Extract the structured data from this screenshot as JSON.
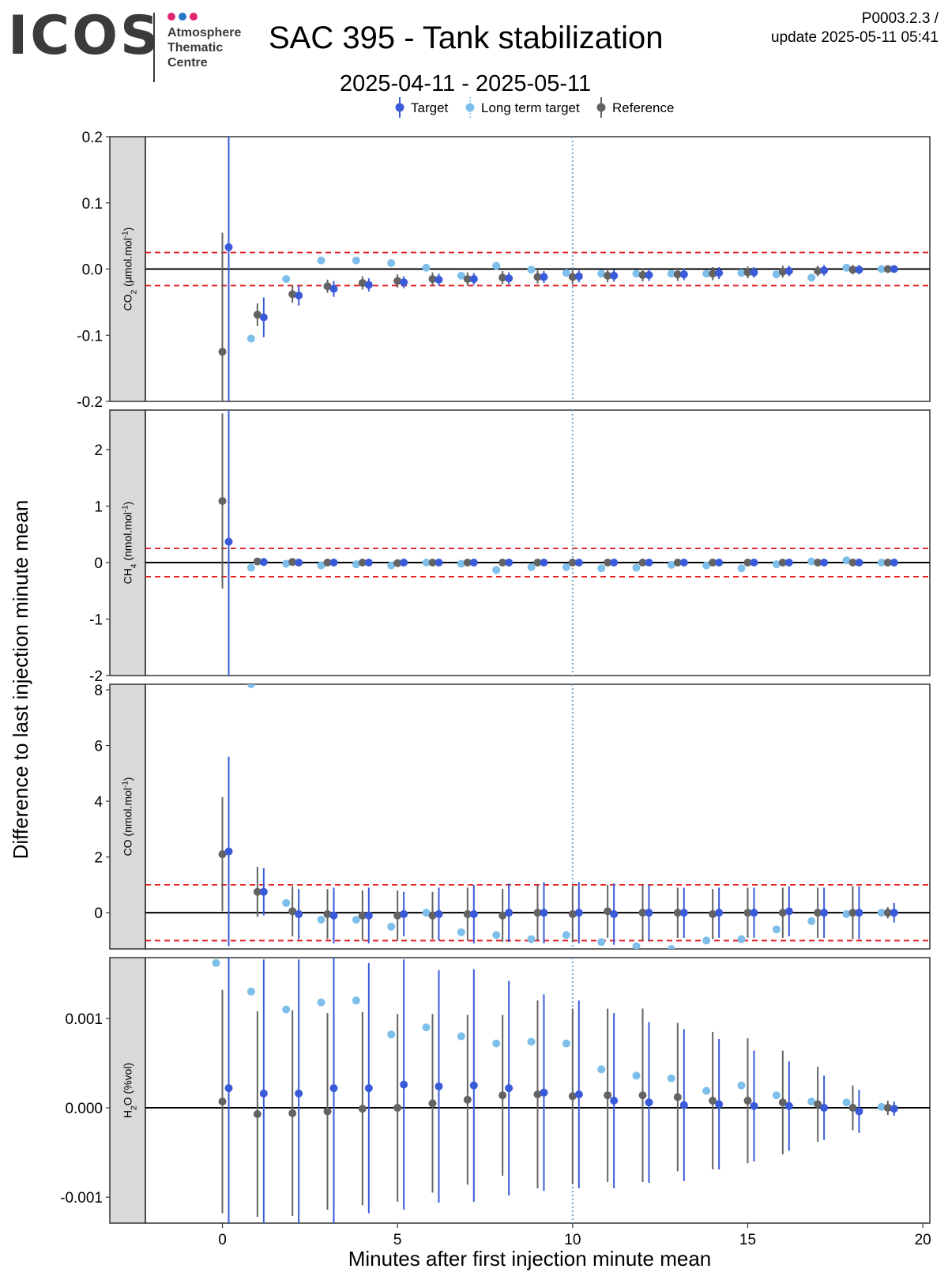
{
  "header": {
    "logo_text": "ICOS",
    "logo_subtitle_lines": [
      "Atmosphere",
      "Thematic",
      "Centre"
    ],
    "logo_dot_colors": [
      "#e0266f",
      "#2878c8",
      "#e0266f"
    ],
    "title": "SAC 395 - Tank stabilization",
    "date_range": "2025-04-11 - 2025-05-11",
    "code": "P0003.2.3 /",
    "update": "update  2025-05-11 05:41"
  },
  "chart_data": {
    "type": "scatter",
    "xlabel": "Minutes after first injection minute mean",
    "ylabel": "Difference to last injection minute mean",
    "xlim": [
      -2.2,
      20.2
    ],
    "xticks": [
      0,
      5,
      10,
      15,
      20
    ],
    "x_tick_labels": [
      "0",
      "5",
      "10",
      "15",
      "20"
    ],
    "vline_x": 10,
    "legend": {
      "position": "top",
      "entries": [
        {
          "name": "Target",
          "color": "#3a5bd9"
        },
        {
          "name": "Long term target",
          "color": "#7dbfea"
        },
        {
          "name": "Reference",
          "color": "#636363"
        }
      ]
    },
    "colors": {
      "target": "#3a5bd9",
      "long_term": "#7dbfea",
      "reference": "#636363",
      "threshold": "#e31a1c",
      "vline": "#6fa8dc",
      "strip": "#d9d9d9"
    },
    "x": [
      0,
      1,
      2,
      3,
      4,
      5,
      6,
      7,
      8,
      9,
      10,
      11,
      12,
      13,
      14,
      15,
      16,
      17,
      18,
      19
    ],
    "panels": [
      {
        "strip_main": "CO",
        "strip_sub": "2",
        "strip_rest": " (μmol.mol",
        "strip_sup": "-1",
        "strip_end": ")",
        "ylim": [
          -0.2,
          0.2
        ],
        "yticks": [
          -0.2,
          -0.1,
          0.0,
          0.1,
          0.2
        ],
        "y_tick_labels": [
          "-0.2",
          "-0.1",
          "0.0",
          "0.1",
          "0.2"
        ],
        "threshold": 0.025,
        "target": [
          0.033,
          -0.073,
          -0.04,
          -0.03,
          -0.024,
          -0.02,
          -0.016,
          -0.015,
          -0.014,
          -0.012,
          -0.011,
          -0.01,
          -0.009,
          -0.008,
          -0.006,
          -0.005,
          -0.003,
          -0.002,
          -0.001,
          0.0
        ],
        "target_err": [
          0.5,
          0.03,
          0.015,
          0.012,
          0.01,
          0.009,
          0.009,
          0.009,
          0.009,
          0.009,
          0.009,
          0.009,
          0.009,
          0.009,
          0.009,
          0.008,
          0.008,
          0.008,
          0.007,
          0.005
        ],
        "long_term": [
          null,
          -0.105,
          -0.015,
          0.013,
          0.013,
          0.009,
          0.002,
          -0.01,
          0.005,
          -0.001,
          -0.006,
          -0.007,
          -0.007,
          -0.007,
          -0.007,
          -0.006,
          -0.008,
          -0.013,
          0.002,
          0.0
        ],
        "reference": [
          -0.125,
          -0.069,
          -0.038,
          -0.026,
          -0.021,
          -0.018,
          -0.015,
          -0.015,
          -0.013,
          -0.012,
          -0.012,
          -0.01,
          -0.009,
          -0.008,
          -0.007,
          -0.005,
          -0.004,
          -0.003,
          -0.001,
          0.0
        ],
        "reference_err": [
          0.18,
          0.017,
          0.013,
          0.01,
          0.01,
          0.01,
          0.01,
          0.01,
          0.01,
          0.01,
          0.01,
          0.01,
          0.01,
          0.01,
          0.01,
          0.009,
          0.009,
          0.008,
          0.007,
          0.004
        ]
      },
      {
        "strip_main": "CH",
        "strip_sub": "4",
        "strip_rest": " (nmol.mol",
        "strip_sup": "-1",
        "strip_end": ")",
        "ylim": [
          -2.0,
          2.7
        ],
        "yticks": [
          -2,
          -1,
          0,
          1,
          2
        ],
        "y_tick_labels": [
          "-2",
          "-1",
          "0",
          "1",
          "2"
        ],
        "threshold": 0.25,
        "target": [
          0.37,
          0.01,
          0.0,
          0.0,
          0.0,
          0.0,
          0.0,
          0.0,
          0.0,
          0.0,
          0.0,
          0.0,
          0.0,
          0.0,
          0.0,
          0.0,
          0.0,
          0.0,
          0.0,
          0.0
        ],
        "target_err": [
          3.0,
          0.02,
          0.02,
          0.02,
          0.02,
          0.02,
          0.02,
          0.02,
          0.02,
          0.02,
          0.02,
          0.02,
          0.02,
          0.02,
          0.02,
          0.02,
          0.02,
          0.02,
          0.02,
          0.02
        ],
        "long_term": [
          null,
          -0.09,
          -0.02,
          -0.05,
          -0.03,
          -0.05,
          0.0,
          -0.02,
          -0.13,
          -0.08,
          -0.08,
          -0.1,
          -0.09,
          -0.04,
          -0.05,
          -0.1,
          -0.03,
          0.02,
          0.04,
          0.0
        ],
        "reference": [
          1.09,
          0.02,
          0.01,
          0.0,
          0.0,
          -0.01,
          0.0,
          0.0,
          0.0,
          0.0,
          0.0,
          0.0,
          0.0,
          0.0,
          0.0,
          0.0,
          0.0,
          0.0,
          0.0,
          0.0
        ],
        "reference_err": [
          1.55,
          0.02,
          0.02,
          0.02,
          0.02,
          0.02,
          0.02,
          0.02,
          0.02,
          0.02,
          0.02,
          0.02,
          0.02,
          0.02,
          0.02,
          0.02,
          0.02,
          0.02,
          0.02,
          0.02
        ]
      },
      {
        "strip_main": "CO",
        "strip_sub": "",
        "strip_rest": " (nmol.mol",
        "strip_sup": "-1",
        "strip_end": ")",
        "ylim": [
          -1.3,
          8.2
        ],
        "yticks": [
          0,
          2,
          4,
          6,
          8
        ],
        "y_tick_labels": [
          "0",
          "2",
          "4",
          "6",
          "8"
        ],
        "threshold": 1.0,
        "target": [
          2.2,
          0.75,
          -0.05,
          -0.1,
          -0.1,
          -0.05,
          -0.05,
          -0.05,
          0.0,
          0.0,
          0.0,
          -0.05,
          0.0,
          0.0,
          0.0,
          0.0,
          0.05,
          0.0,
          0.0,
          0.0
        ],
        "target_err": [
          3.4,
          0.85,
          0.9,
          1.0,
          1.0,
          0.8,
          0.95,
          1.05,
          1.05,
          1.1,
          1.1,
          1.1,
          1.0,
          0.9,
          0.9,
          0.9,
          0.9,
          0.9,
          0.95,
          0.35
        ],
        "long_term": [
          null,
          8.2,
          0.35,
          -0.25,
          -0.25,
          -0.5,
          0.0,
          -0.7,
          -0.8,
          -0.95,
          -0.8,
          -1.05,
          -1.2,
          -1.3,
          -1.0,
          -0.95,
          -0.6,
          -0.3,
          -0.05,
          0.0
        ],
        "reference": [
          2.1,
          0.75,
          0.05,
          -0.05,
          -0.1,
          -0.1,
          -0.1,
          -0.05,
          -0.1,
          0.0,
          -0.05,
          0.05,
          0.0,
          0.0,
          -0.05,
          0.0,
          0.0,
          0.0,
          0.0,
          0.0
        ],
        "reference_err": [
          2.05,
          0.9,
          0.9,
          0.9,
          0.9,
          0.9,
          0.85,
          0.95,
          0.95,
          1.0,
          1.0,
          0.95,
          1.0,
          0.9,
          0.9,
          0.9,
          0.9,
          0.9,
          0.95,
          0.2
        ]
      },
      {
        "strip_main": "H",
        "strip_sub": "2",
        "strip_rest": "O (%vol)",
        "strip_sup": "",
        "strip_end": "",
        "ylim": [
          -0.00129,
          0.00168
        ],
        "yticks": [
          -0.001,
          0.0,
          0.001
        ],
        "y_tick_labels": [
          "-0.001",
          "0.000",
          "0.001"
        ],
        "threshold": null,
        "target": [
          0.00022,
          0.00016,
          0.00016,
          0.00022,
          0.00022,
          0.00026,
          0.00024,
          0.00025,
          0.00022,
          0.00017,
          0.00015,
          8e-05,
          6e-05,
          3e-05,
          4e-05,
          2e-05,
          2e-05,
          0.0,
          -4e-05,
          -1e-05
        ],
        "target_err": [
          0.0017,
          0.0015,
          0.0015,
          0.0016,
          0.0014,
          0.0014,
          0.0013,
          0.0013,
          0.0012,
          0.0011,
          0.00105,
          0.00098,
          0.0009,
          0.00085,
          0.00073,
          0.00062,
          0.0005,
          0.00036,
          0.00024,
          8e-05
        ],
        "long_term": [
          0.00162,
          0.0013,
          0.0011,
          0.00118,
          0.0012,
          0.00082,
          0.0009,
          0.0008,
          0.00072,
          0.00074,
          0.00072,
          0.00043,
          0.00036,
          0.00033,
          0.00019,
          0.00025,
          0.00014,
          7e-05,
          6e-05,
          1e-05
        ],
        "reference": [
          7e-05,
          -7e-05,
          -6e-05,
          -4e-05,
          -1e-05,
          0.0,
          5e-05,
          9e-05,
          0.00014,
          0.00015,
          0.00013,
          0.00014,
          0.00014,
          0.00012,
          8e-05,
          8e-05,
          6e-05,
          4e-05,
          0.0,
          0.0
        ],
        "reference_err": [
          0.00125,
          0.00115,
          0.00115,
          0.0011,
          0.00108,
          0.00105,
          0.001,
          0.00095,
          0.0009,
          0.00105,
          0.00098,
          0.00097,
          0.00097,
          0.00083,
          0.00077,
          0.0007,
          0.00058,
          0.00042,
          0.00025,
          8e-05
        ]
      }
    ]
  }
}
